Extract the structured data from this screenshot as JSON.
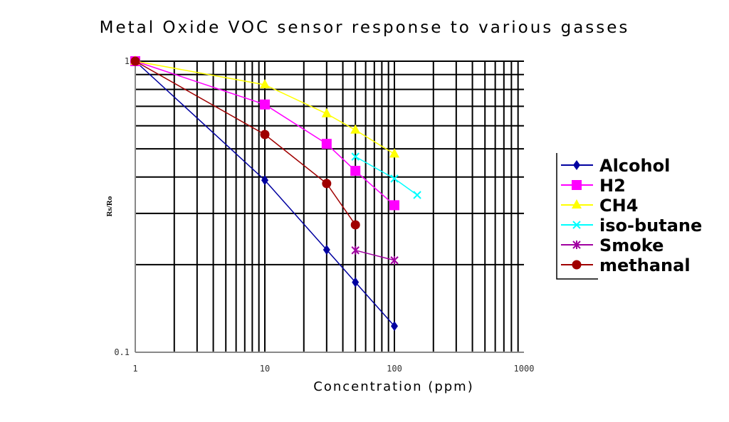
{
  "chart_data": {
    "type": "line",
    "title": "Metal Oxide VOC sensor response to various gasses",
    "xlabel": "Concentration (ppm)",
    "ylabel": "Rs/Ro",
    "xscale": "log",
    "yscale": "log",
    "xlim": [
      1,
      1000
    ],
    "ylim": [
      0.1,
      1
    ],
    "x_ticks": [
      "1",
      "10",
      "100",
      "1000"
    ],
    "y_ticks": [
      "0.1",
      "1"
    ],
    "grid": true,
    "legend": "right",
    "series": [
      {
        "name": "Alcohol",
        "color": "#0000a0",
        "marker": "diamond",
        "x": [
          1,
          10,
          30,
          50,
          100
        ],
        "y": [
          1,
          0.39,
          0.225,
          0.174,
          0.123
        ]
      },
      {
        "name": "H2",
        "color": "#ff00ff",
        "marker": "square",
        "x": [
          1,
          10,
          30,
          50,
          100
        ],
        "y": [
          1,
          0.71,
          0.52,
          0.42,
          0.32
        ]
      },
      {
        "name": "CH4",
        "color": "#ffff00",
        "marker": "triangle",
        "x": [
          1,
          10,
          30,
          50,
          100
        ],
        "y": [
          1,
          0.83,
          0.66,
          0.58,
          0.48
        ]
      },
      {
        "name": "iso-butane",
        "color": "#00ffff",
        "marker": "x",
        "x": [
          50,
          100,
          150
        ],
        "y": [
          0.47,
          0.395,
          0.347
        ]
      },
      {
        "name": "Smoke",
        "color": "#a000a0",
        "marker": "star",
        "x": [
          50,
          100
        ],
        "y": [
          0.224,
          0.207
        ]
      },
      {
        "name": "methanal",
        "color": "#a00000",
        "marker": "circle",
        "x": [
          1,
          10,
          30,
          50
        ],
        "y": [
          1,
          0.56,
          0.38,
          0.274
        ]
      }
    ]
  }
}
